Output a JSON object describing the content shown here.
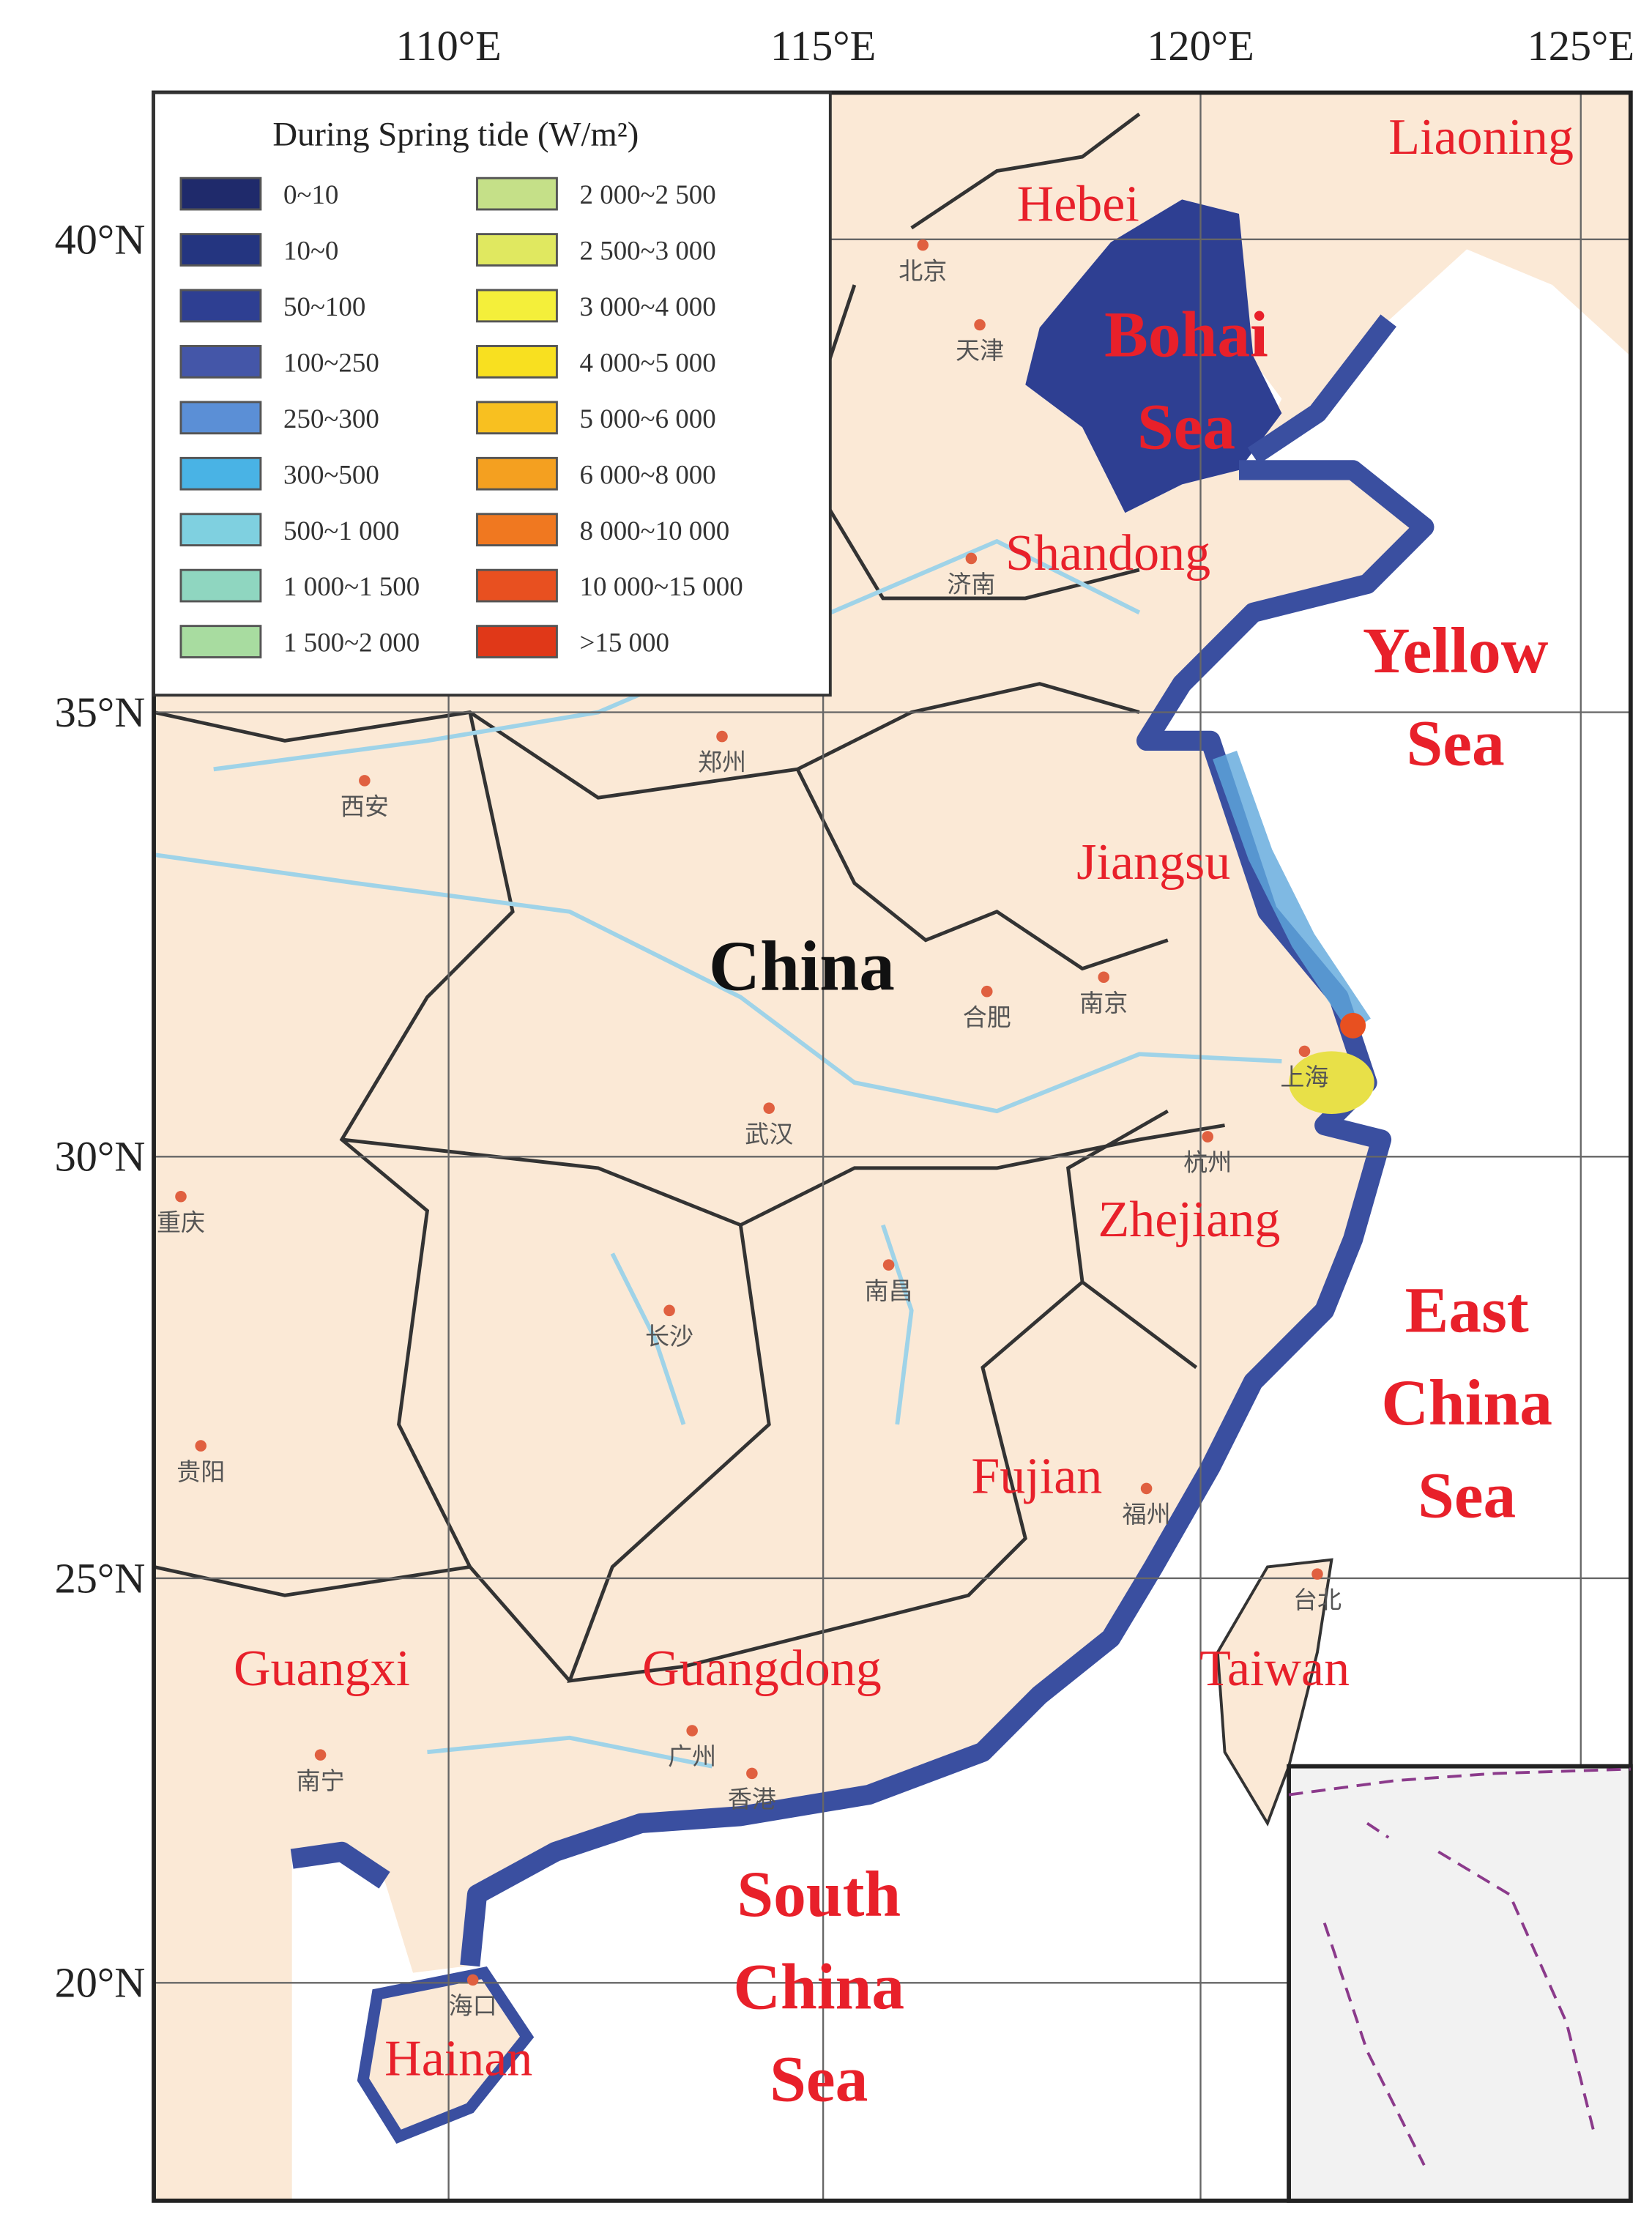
{
  "graticule": {
    "longitudes": [
      "110°E",
      "115°E",
      "120°E",
      "125°E"
    ],
    "latitudes": [
      "40°N",
      "35°N",
      "30°N",
      "25°N",
      "20°N"
    ]
  },
  "legend": {
    "title": "During Spring tide (W/m²)",
    "items": [
      {
        "label": "0~10",
        "color": "#1f2a6b"
      },
      {
        "label": "10~0",
        "color": "#243580"
      },
      {
        "label": "50~100",
        "color": "#2e3f92"
      },
      {
        "label": "100~250",
        "color": "#4456a8"
      },
      {
        "label": "250~300",
        "color": "#5b8fd6"
      },
      {
        "label": "300~500",
        "color": "#49b3e5"
      },
      {
        "label": "500~1 000",
        "color": "#7fd0e0"
      },
      {
        "label": "1 000~1 500",
        "color": "#8fd6c0"
      },
      {
        "label": "1 500~2 000",
        "color": "#a8dca0"
      },
      {
        "label": "2 000~2 500",
        "color": "#c5e088"
      },
      {
        "label": "2 500~3 000",
        "color": "#e0e860"
      },
      {
        "label": "3 000~4 000",
        "color": "#f4ef3a"
      },
      {
        "label": "4 000~5 000",
        "color": "#f8e020"
      },
      {
        "label": "5 000~6 000",
        "color": "#f8c020"
      },
      {
        "label": "6 000~8 000",
        "color": "#f4a020"
      },
      {
        "label": "8 000~10 000",
        "color": "#f07820"
      },
      {
        "label": "10 000~15 000",
        "color": "#e85020"
      },
      {
        "label": ">15 000",
        "color": "#e03818"
      }
    ]
  },
  "country": "China",
  "regions": [
    "Liaoning",
    "Hebei",
    "Shandong",
    "Jiangsu",
    "Zhejiang",
    "Fujian",
    "Taiwan",
    "Guangxi",
    "Guangdong",
    "Hainan"
  ],
  "seas": [
    {
      "lines": [
        "Bohai",
        "Sea"
      ]
    },
    {
      "lines": [
        "Yellow",
        "Sea"
      ]
    },
    {
      "lines": [
        "East",
        "China",
        "Sea"
      ]
    },
    {
      "lines": [
        "South",
        "China",
        "Sea"
      ]
    }
  ],
  "cities": [
    "北京",
    "天津",
    "济南",
    "郑州",
    "西安",
    "合肥",
    "南京",
    "上海",
    "武汉",
    "杭州",
    "重庆",
    "长沙",
    "南昌",
    "贵阳",
    "福州",
    "台北",
    "广州",
    "香港",
    "南宁",
    "海口"
  ]
}
